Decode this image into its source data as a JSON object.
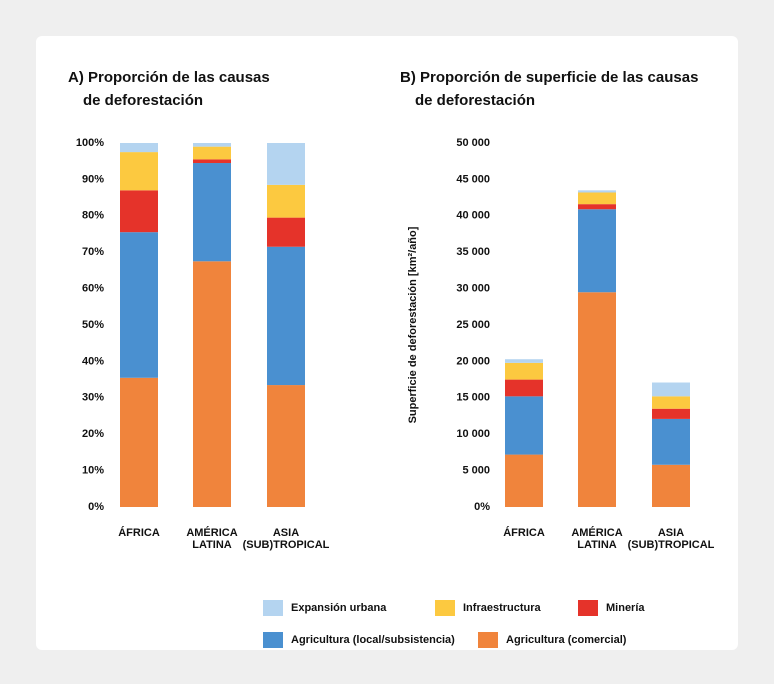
{
  "chart_data": [
    {
      "type": "stacked_bar",
      "title": [
        "A) Proporción de las causas",
        "de deforestación"
      ],
      "categories": [
        "ÁFRICA",
        "AMÉRICA LATINA",
        "ASIA (SUB)TROPICAL"
      ],
      "series": [
        {
          "name": "Agricultura (comercial)",
          "color": "#f0843c",
          "values": [
            35.5,
            67.5,
            33.5
          ]
        },
        {
          "name": "Agricultura (local/subsistencia)",
          "color": "#4a90d0",
          "values": [
            40,
            27,
            38
          ]
        },
        {
          "name": "Minería",
          "color": "#e5332a",
          "values": [
            11.5,
            1,
            8
          ]
        },
        {
          "name": "Infraestructura",
          "color": "#fcc940",
          "values": [
            10.5,
            3.5,
            9
          ]
        },
        {
          "name": "Expansión urbana",
          "color": "#b4d4f0",
          "values": [
            2.5,
            1,
            11.5
          ]
        }
      ],
      "ylim": [
        0,
        100
      ],
      "yticks": [
        {
          "value": 0,
          "label": "0%"
        },
        {
          "value": 10,
          "label": "10%"
        },
        {
          "value": 20,
          "label": "20%"
        },
        {
          "value": 30,
          "label": "30%"
        },
        {
          "value": 40,
          "label": "40%"
        },
        {
          "value": 50,
          "label": "50%"
        },
        {
          "value": 60,
          "label": "60%"
        },
        {
          "value": 70,
          "label": "70%"
        },
        {
          "value": 80,
          "label": "80%"
        },
        {
          "value": 90,
          "label": "90%"
        },
        {
          "value": 100,
          "label": "100%"
        }
      ]
    },
    {
      "type": "stacked_bar",
      "title": [
        "B) Proporción de superficie de las causas",
        "de deforestación"
      ],
      "y_label": "Superficie de deforestación [km²/año]",
      "categories": [
        "ÁFRICA",
        "AMÉRICA LATINA",
        "ASIA (SUB)TROPICAL"
      ],
      "series": [
        {
          "color": "#f0843c",
          "values": [
            7200,
            29500,
            5800
          ]
        },
        {
          "color": "#4a90d0",
          "values": [
            8000,
            11400,
            6300
          ]
        },
        {
          "color": "#e5332a",
          "values": [
            2300,
            700,
            1400
          ]
        },
        {
          "color": "#fcc940",
          "values": [
            2300,
            1600,
            1700
          ]
        },
        {
          "color": "#b4d4f0",
          "values": [
            500,
            300,
            1900
          ]
        }
      ],
      "ylim": [
        0,
        50000
      ],
      "yticks": [
        {
          "value": 0,
          "label": "0%"
        },
        {
          "value": 5000,
          "label": "5 000"
        },
        {
          "value": 10000,
          "label": "10 000"
        },
        {
          "value": 15000,
          "label": "15 000"
        },
        {
          "value": 20000,
          "label": "20 000"
        },
        {
          "value": 25000,
          "label": "25 000"
        },
        {
          "value": 30000,
          "label": "30 000"
        },
        {
          "value": 35000,
          "label": "35 000"
        },
        {
          "value": 40000,
          "label": "40 000"
        },
        {
          "value": 45000,
          "label": "45 000"
        },
        {
          "value": 50000,
          "label": "50 000"
        }
      ]
    }
  ]
}
